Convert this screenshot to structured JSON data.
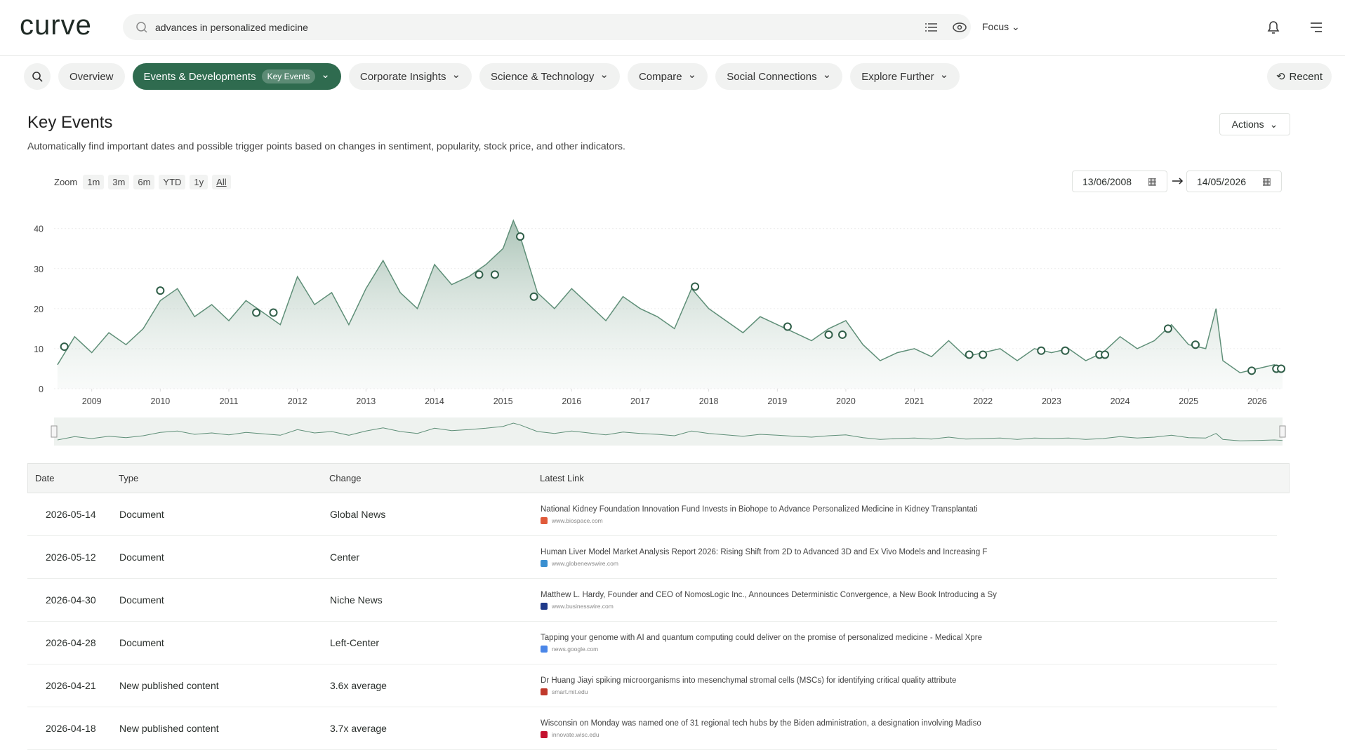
{
  "header": {
    "logo": "curve",
    "search_query": "advances in personalized medicine",
    "focus": "Focus"
  },
  "nav": {
    "tabs": [
      "Overview",
      "Events & Developments",
      "Corporate Insights",
      "Science & Technology",
      "Compare",
      "Social Connections",
      "Explore Further"
    ],
    "active_badge": "Key Events",
    "recent": "Recent"
  },
  "section": {
    "title": "Key Events",
    "description": "Automatically find important dates and possible trigger points based on changes in sentiment, popularity, stock price, and other indicators.",
    "actions": "Actions"
  },
  "zoom": {
    "label": "Zoom",
    "buttons": [
      "1m",
      "3m",
      "6m",
      "YTD",
      "1y",
      "All"
    ]
  },
  "date_range": {
    "start": "13/06/2008",
    "end": "14/05/2026"
  },
  "chart_data": {
    "type": "area",
    "color": "#5f8f78",
    "x": [
      2008.5,
      2008.75,
      2009,
      2009.25,
      2009.5,
      2009.75,
      2010,
      2010.25,
      2010.5,
      2010.75,
      2011,
      2011.25,
      2011.5,
      2011.75,
      2012,
      2012.25,
      2012.5,
      2012.75,
      2013,
      2013.25,
      2013.5,
      2013.75,
      2014,
      2014.25,
      2014.5,
      2014.75,
      2015,
      2015.15,
      2015.25,
      2015.5,
      2015.75,
      2016,
      2016.25,
      2016.5,
      2016.75,
      2017,
      2017.25,
      2017.5,
      2017.75,
      2018,
      2018.25,
      2018.5,
      2018.75,
      2019,
      2019.25,
      2019.5,
      2019.75,
      2020,
      2020.25,
      2020.5,
      2020.75,
      2021,
      2021.25,
      2021.5,
      2021.75,
      2022,
      2022.25,
      2022.5,
      2022.75,
      2023,
      2023.25,
      2023.5,
      2023.75,
      2024,
      2024.25,
      2024.5,
      2024.75,
      2025,
      2025.25,
      2025.4,
      2025.5,
      2025.75,
      2026,
      2026.25,
      2026.37
    ],
    "values": [
      6,
      13,
      9,
      14,
      11,
      15,
      22,
      25,
      18,
      21,
      17,
      22,
      19,
      16,
      28,
      21,
      24,
      16,
      25,
      32,
      24,
      20,
      31,
      26,
      28,
      31,
      35,
      42,
      38,
      24,
      20,
      25,
      21,
      17,
      23,
      20,
      18,
      15,
      25,
      20,
      17,
      14,
      18,
      16,
      14,
      12,
      15,
      17,
      11,
      7,
      9,
      10,
      8,
      12,
      8,
      9,
      10,
      7,
      10,
      9,
      10,
      7,
      9,
      13,
      10,
      12,
      16,
      11,
      10,
      20,
      7,
      4,
      5,
      6,
      5
    ],
    "events": {
      "x": [
        2008.6,
        2010,
        2011.4,
        2011.65,
        2014.65,
        2014.88,
        2015.25,
        2015.45,
        2017.8,
        2019.15,
        2019.75,
        2019.95,
        2021.8,
        2022,
        2022.85,
        2023.2,
        2023.7,
        2023.78,
        2024.7,
        2025.1,
        2025.92,
        2026.28,
        2026.35
      ],
      "values": [
        10.5,
        24.5,
        19,
        19,
        28.5,
        28.5,
        38,
        23,
        25.5,
        15.5,
        13.5,
        13.5,
        8.5,
        8.5,
        9.5,
        9.5,
        8.5,
        8.5,
        15,
        11,
        4.5,
        5,
        5
      ]
    },
    "xlim": [
      2008.45,
      2026.37
    ],
    "xticks": [
      2009,
      2010,
      2011,
      2012,
      2013,
      2014,
      2015,
      2016,
      2017,
      2018,
      2019,
      2020,
      2021,
      2022,
      2023,
      2024,
      2025,
      2026
    ],
    "ylim": [
      0,
      48
    ],
    "yticks": [
      0,
      10,
      20,
      30,
      40
    ],
    "grid": true
  },
  "table": {
    "columns": [
      "Date",
      "Type",
      "Change",
      "Latest Link"
    ],
    "rows": [
      [
        "2026-05-14",
        "Document",
        "Global News",
        {
          "title": "National Kidney Foundation Innovation Fund Invests in Biohope to Advance Personalized Medicine in Kidney Transplantati",
          "domain": "www.biospace.com"
        }
      ],
      [
        "2026-05-12",
        "Document",
        "Center",
        {
          "title": "Human Liver Model Market Analysis Report 2026: Rising Shift from 2D to Advanced 3D and Ex Vivo Models and Increasing F",
          "domain": "www.globenewswire.com"
        }
      ],
      [
        "2026-04-30",
        "Document",
        "Niche News",
        {
          "title": "Matthew L. Hardy, Founder and CEO of NomosLogic Inc., Announces Deterministic Convergence, a New Book Introducing a Sy",
          "domain": "www.businesswire.com"
        }
      ],
      [
        "2026-04-28",
        "Document",
        "Left-Center",
        {
          "title": "Tapping your genome with AI and quantum computing could deliver on the promise of personalized medicine - Medical Xpre",
          "domain": "news.google.com"
        }
      ],
      [
        "2026-04-21",
        "New published content",
        "3.6x average",
        {
          "title": "Dr Huang Jiayi spiking microorganisms into mesenchymal stromal cells (MSCs) for identifying critical quality attribute",
          "domain": "smart.mit.edu"
        }
      ],
      [
        "2026-04-18",
        "New published content",
        "3.7x average",
        {
          "title": "Wisconsin on Monday was named one of 31 regional tech hubs by the Biden administration, a designation involving Madiso",
          "domain": "innovate.wisc.edu"
        }
      ]
    ]
  }
}
